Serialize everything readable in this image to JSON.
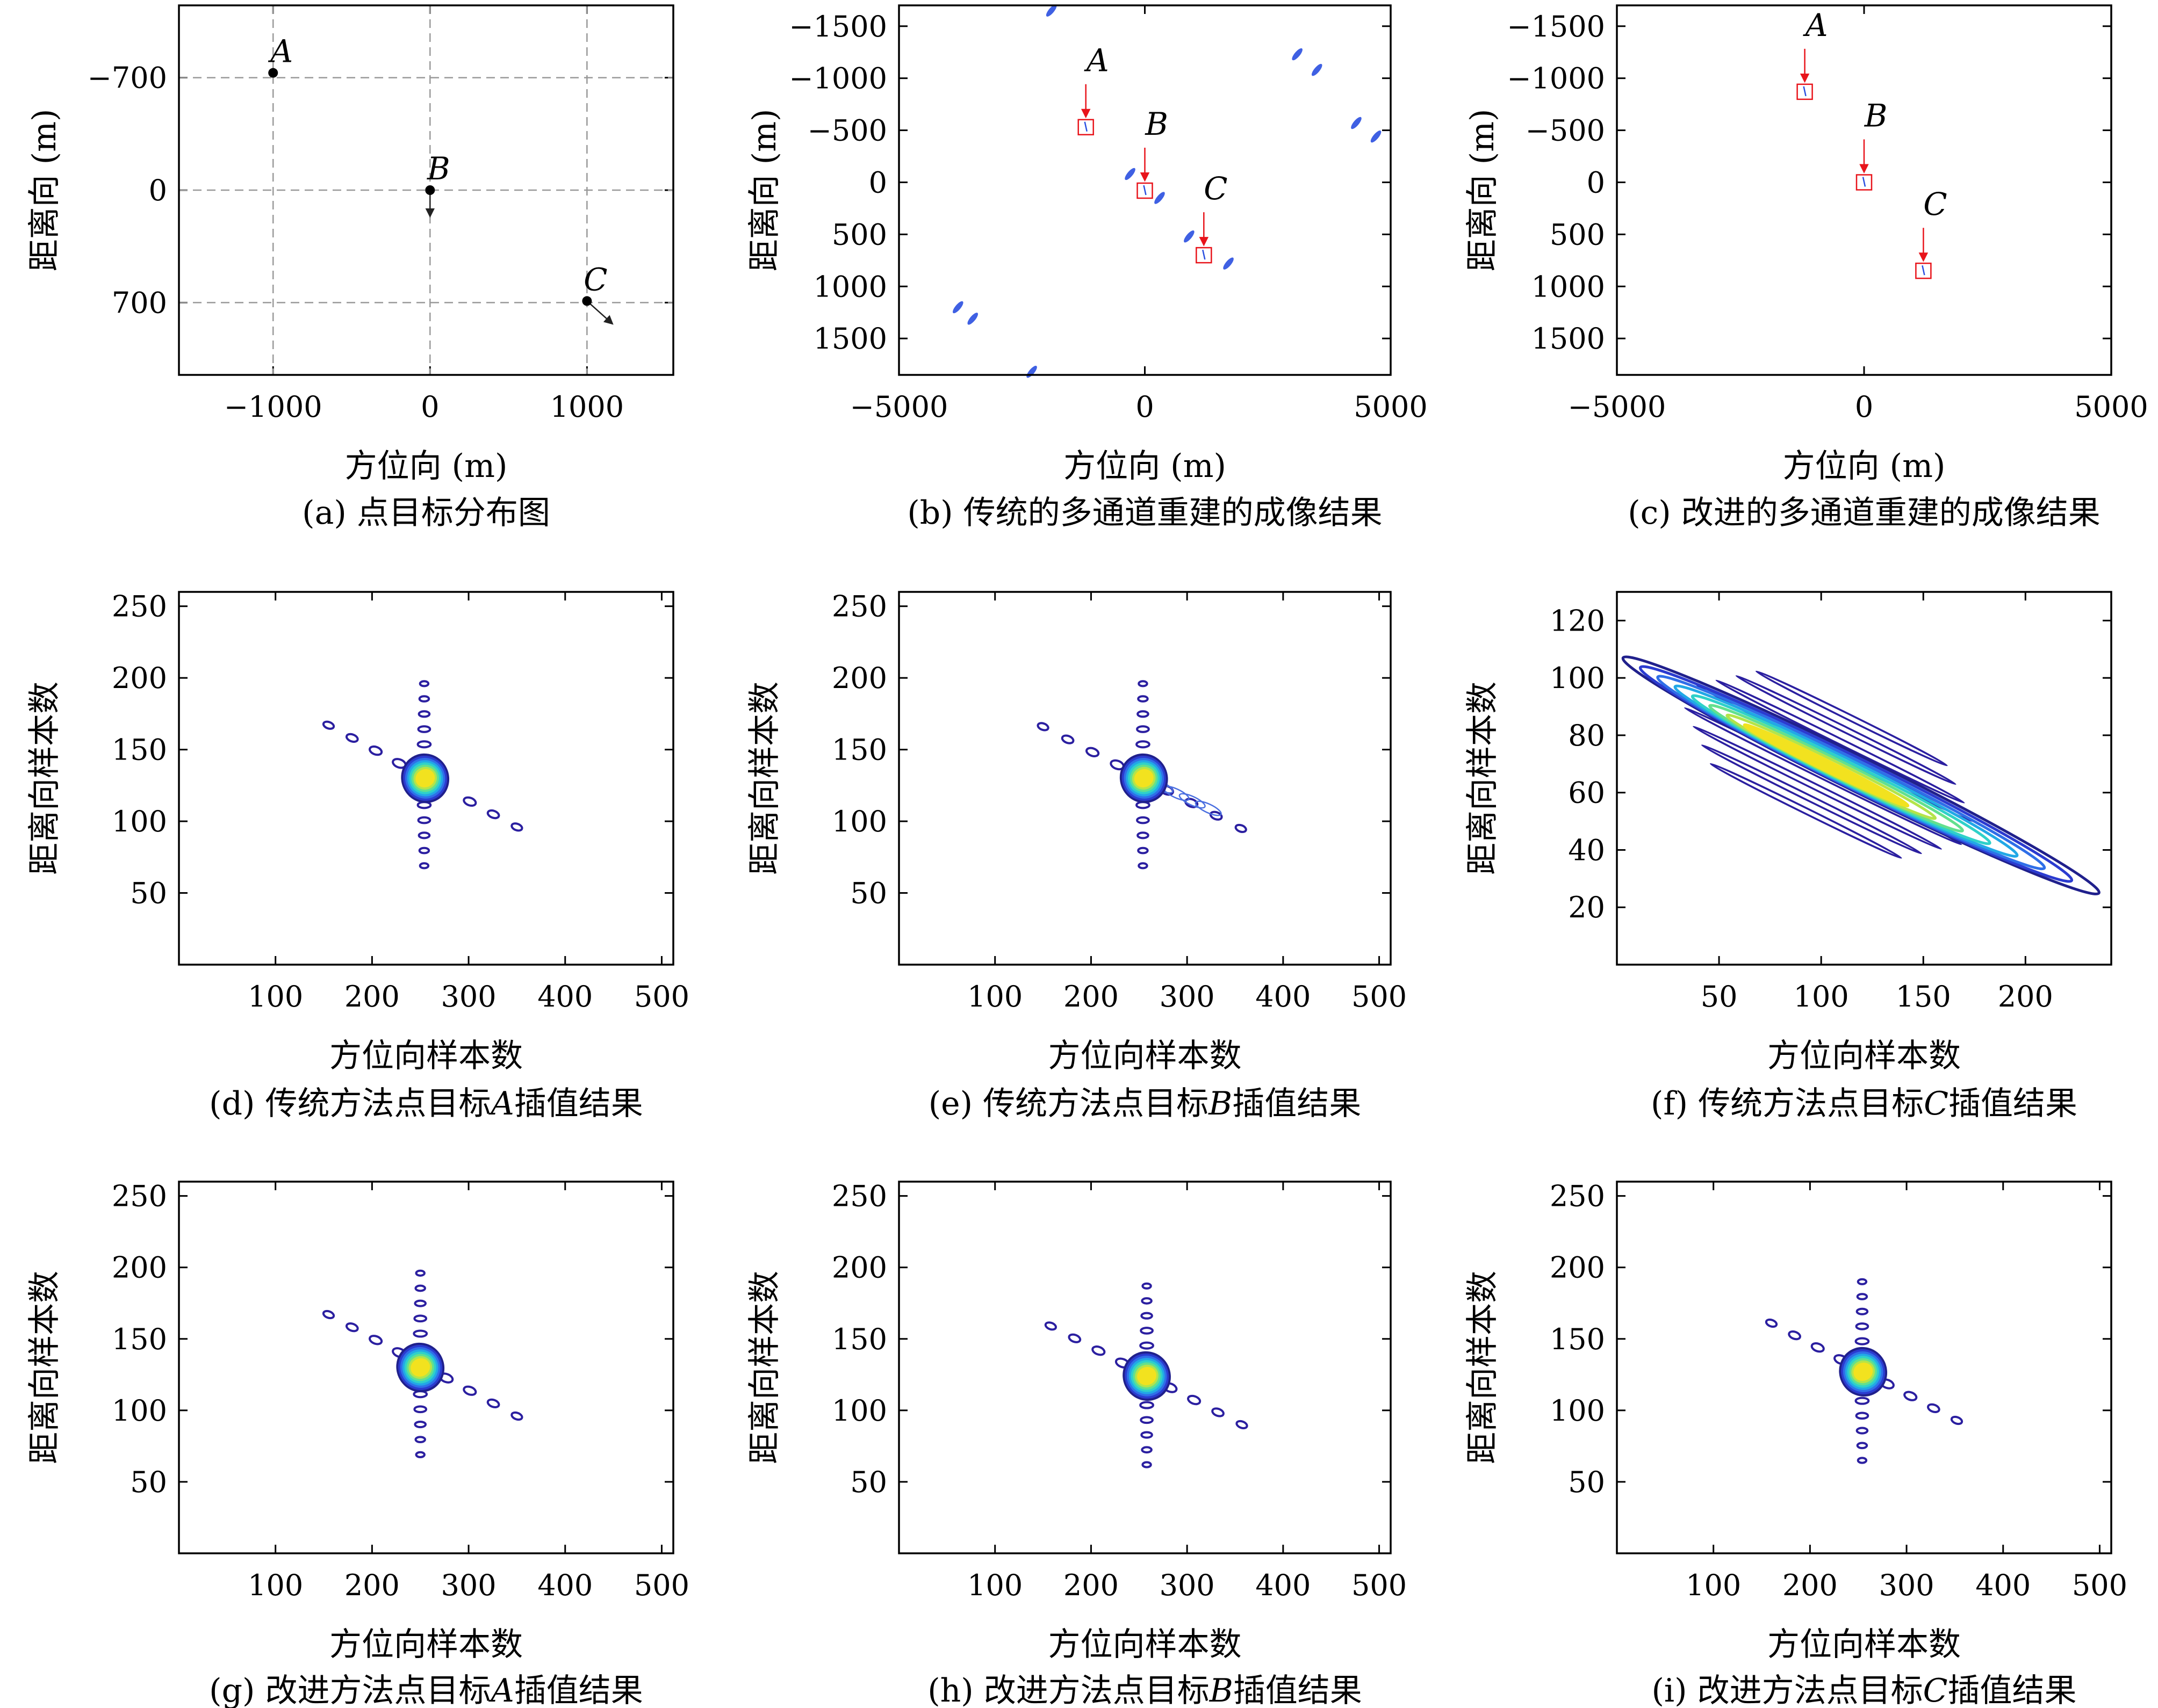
{
  "chart_data": [
    {
      "id": "a",
      "type": "scatter",
      "caption": "(a) 点目标分布图",
      "xlabel": "方位向 (m)",
      "ylabel": "距离向 (m)",
      "xlim": [
        -1600,
        1550
      ],
      "ylim": [
        -1150,
        1150
      ],
      "y_inverted": true,
      "xticks": [
        -1000,
        0,
        1000
      ],
      "xtick_labels": [
        "−1000",
        "0",
        "1000"
      ],
      "yticks": [
        -700,
        0,
        700
      ],
      "ytick_labels": [
        "−700",
        "0",
        "700"
      ],
      "grid": true,
      "points": [
        {
          "label": "A",
          "x": -1000,
          "y": -730,
          "vx": 0,
          "vy": 0
        },
        {
          "label": "B",
          "x": 0,
          "y": 0,
          "vx": 0,
          "vy": 160
        },
        {
          "label": "C",
          "x": 1000,
          "y": 690,
          "vx": 160,
          "vy": 140
        }
      ]
    },
    {
      "id": "b",
      "type": "scatter",
      "caption": "(b) 传统的多通道重建的成像结果",
      "xlabel": "方位向 (m)",
      "ylabel": "距离向 (m)",
      "xlim": [
        -5000,
        5000
      ],
      "ylim": [
        -1700,
        1850
      ],
      "y_inverted": true,
      "xticks": [
        -5000,
        0,
        5000
      ],
      "xtick_labels": [
        "−5000",
        "0",
        "5000"
      ],
      "yticks": [
        -1500,
        -1000,
        -500,
        0,
        500,
        1000,
        1500
      ],
      "ytick_labels": [
        "−1500",
        "−1000",
        "−500",
        "0",
        "500",
        "1000",
        "1500"
      ],
      "targets": [
        {
          "label": "A",
          "x": -1200,
          "y": -530
        },
        {
          "label": "B",
          "x": 0,
          "y": 80
        },
        {
          "label": "C",
          "x": 1200,
          "y": 700
        }
      ],
      "ghosts": [
        {
          "x": 1700,
          "y": 780
        },
        {
          "x": 300,
          "y": 150
        },
        {
          "x": -300,
          "y": -80
        },
        {
          "x": 3100,
          "y": -1230
        },
        {
          "x": 3500,
          "y": -1080
        },
        {
          "x": 4300,
          "y": -570
        },
        {
          "x": 4700,
          "y": -440
        },
        {
          "x": -3500,
          "y": 1310
        },
        {
          "x": -3800,
          "y": 1200
        },
        {
          "x": -1900,
          "y": -1650
        },
        {
          "x": -2300,
          "y": 1820
        },
        {
          "x": 900,
          "y": 520
        }
      ]
    },
    {
      "id": "c",
      "type": "scatter",
      "caption": "(c) 改进的多通道重建的成像结果",
      "xlabel": "方位向 (m)",
      "ylabel": "距离向 (m)",
      "xlim": [
        -5000,
        5000
      ],
      "ylim": [
        -1700,
        1850
      ],
      "y_inverted": true,
      "xticks": [
        -5000,
        0,
        5000
      ],
      "xtick_labels": [
        "−5000",
        "0",
        "5000"
      ],
      "yticks": [
        -1500,
        -1000,
        -500,
        0,
        500,
        1000,
        1500
      ],
      "ytick_labels": [
        "−1500",
        "−1000",
        "−500",
        "0",
        "500",
        "1000",
        "1500"
      ],
      "targets": [
        {
          "label": "A",
          "x": -1200,
          "y": -870
        },
        {
          "label": "B",
          "x": 0,
          "y": 0
        },
        {
          "label": "C",
          "x": 1200,
          "y": 850
        }
      ]
    },
    {
      "id": "d",
      "type": "contour",
      "caption": "(d) 传统方法点目标A插值结果",
      "caption_prefix": "(d) 传统方法点目标",
      "caption_italic": "A",
      "caption_suffix": "插值结果",
      "xlabel": "方位向样本数",
      "ylabel": "距离向样本数",
      "xlim": [
        0,
        512
      ],
      "ylim": [
        0,
        260
      ],
      "xticks": [
        100,
        200,
        300,
        400,
        500
      ],
      "yticks": [
        50,
        100,
        150,
        200,
        250
      ],
      "center": [
        255,
        130
      ],
      "diag_from": [
        155,
        167
      ],
      "diag_to": [
        350,
        96
      ],
      "vert_from": [
        254,
        196
      ],
      "vert_to": [
        254,
        69
      ],
      "skew": 0
    },
    {
      "id": "e",
      "type": "contour",
      "caption": "(e) 传统方法点目标B插值结果",
      "caption_prefix": "(e) 传统方法点目标",
      "caption_italic": "B",
      "caption_suffix": "插值结果",
      "xlabel": "方位向样本数",
      "ylabel": "距离向样本数",
      "xlim": [
        0,
        512
      ],
      "ylim": [
        0,
        260
      ],
      "xticks": [
        100,
        200,
        300,
        400,
        500
      ],
      "yticks": [
        50,
        100,
        150,
        200,
        250
      ],
      "center": [
        255,
        130
      ],
      "diag_from": [
        150,
        166
      ],
      "diag_to": [
        356,
        95
      ],
      "vert_from": [
        254,
        196
      ],
      "vert_to": [
        254,
        69
      ],
      "skew": 1
    },
    {
      "id": "f",
      "type": "contour",
      "caption": "(f) 传统方法点目标C插值结果",
      "caption_prefix": "(f) 传统方法点目标",
      "caption_italic": "C",
      "caption_suffix": "插值结果",
      "xlabel": "方位向样本数",
      "ylabel": "距离向样本数",
      "xlim": [
        0,
        242
      ],
      "ylim": [
        0,
        130
      ],
      "xticks": [
        50,
        100,
        150,
        200
      ],
      "yticks": [
        20,
        40,
        60,
        80,
        100,
        120
      ],
      "band_from": [
        3,
        107
      ],
      "band_to": [
        236,
        25
      ],
      "peak": [
        100,
        70
      ]
    },
    {
      "id": "g",
      "type": "contour",
      "caption": "(g) 改进方法点目标A插值结果",
      "caption_prefix": "(g) 改进方法点目标",
      "caption_italic": "A",
      "caption_suffix": "插值结果",
      "xlabel": "方位向样本数",
      "ylabel": "距离向样本数",
      "xlim": [
        0,
        512
      ],
      "ylim": [
        0,
        260
      ],
      "xticks": [
        100,
        200,
        300,
        400,
        500
      ],
      "yticks": [
        50,
        100,
        150,
        200,
        250
      ],
      "center": [
        250,
        130
      ],
      "diag_from": [
        155,
        167
      ],
      "diag_to": [
        350,
        96
      ],
      "vert_from": [
        250,
        196
      ],
      "vert_to": [
        250,
        69
      ],
      "skew": 0
    },
    {
      "id": "h",
      "type": "contour",
      "caption": "(h) 改进方法点目标B插值结果",
      "caption_prefix": "(h) 改进方法点目标",
      "caption_italic": "B",
      "caption_suffix": "插值结果",
      "xlabel": "方位向样本数",
      "ylabel": "距离向样本数",
      "xlim": [
        0,
        512
      ],
      "ylim": [
        0,
        260
      ],
      "xticks": [
        100,
        200,
        300,
        400,
        500
      ],
      "yticks": [
        50,
        100,
        150,
        200,
        250
      ],
      "center": [
        258,
        124
      ],
      "diag_from": [
        158,
        159
      ],
      "diag_to": [
        357,
        90
      ],
      "vert_from": [
        258,
        187
      ],
      "vert_to": [
        258,
        62
      ],
      "skew": 0
    },
    {
      "id": "i",
      "type": "contour",
      "caption": "(i) 改进方法点目标C插值结果",
      "caption_prefix": "(i) 改进方法点目标",
      "caption_italic": "C",
      "caption_suffix": "插值结果",
      "xlabel": "方位向样本数",
      "ylabel": "距离向样本数",
      "xlim": [
        0,
        512
      ],
      "ylim": [
        0,
        260
      ],
      "xticks": [
        100,
        200,
        300,
        400,
        500
      ],
      "yticks": [
        50,
        100,
        150,
        200,
        250
      ],
      "center": [
        255,
        127
      ],
      "diag_from": [
        160,
        161
      ],
      "diag_to": [
        352,
        93
      ],
      "vert_from": [
        254,
        190
      ],
      "vert_to": [
        254,
        65
      ],
      "skew": 0
    }
  ]
}
